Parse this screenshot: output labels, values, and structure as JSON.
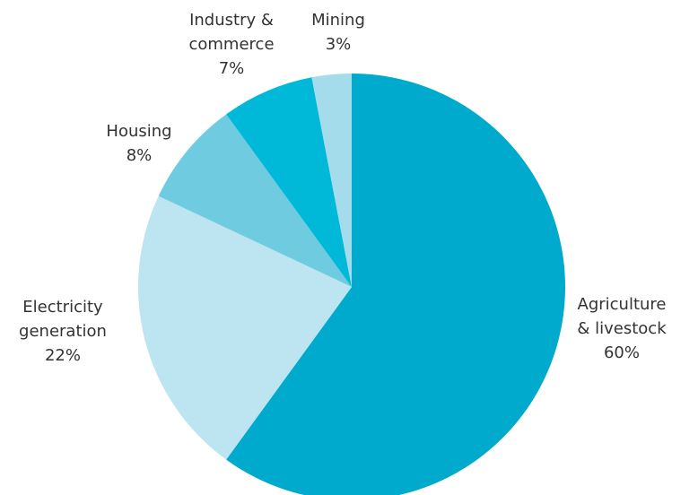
{
  "chart_data": {
    "type": "pie",
    "categories": [
      [
        "Agriculture",
        "& livestock"
      ],
      [
        "Electricity",
        "generation"
      ],
      [
        "Housing"
      ],
      [
        "Industry &",
        "commerce"
      ],
      [
        "Mining"
      ]
    ],
    "values": [
      60,
      22,
      8,
      7,
      3
    ],
    "value_labels": [
      "60%",
      "22%",
      "8%",
      "7%",
      "3%"
    ],
    "colors": [
      "#00aacd",
      "#bde5f1",
      "#6fcbe0",
      "#00b9d8",
      "#a4dcec"
    ]
  }
}
